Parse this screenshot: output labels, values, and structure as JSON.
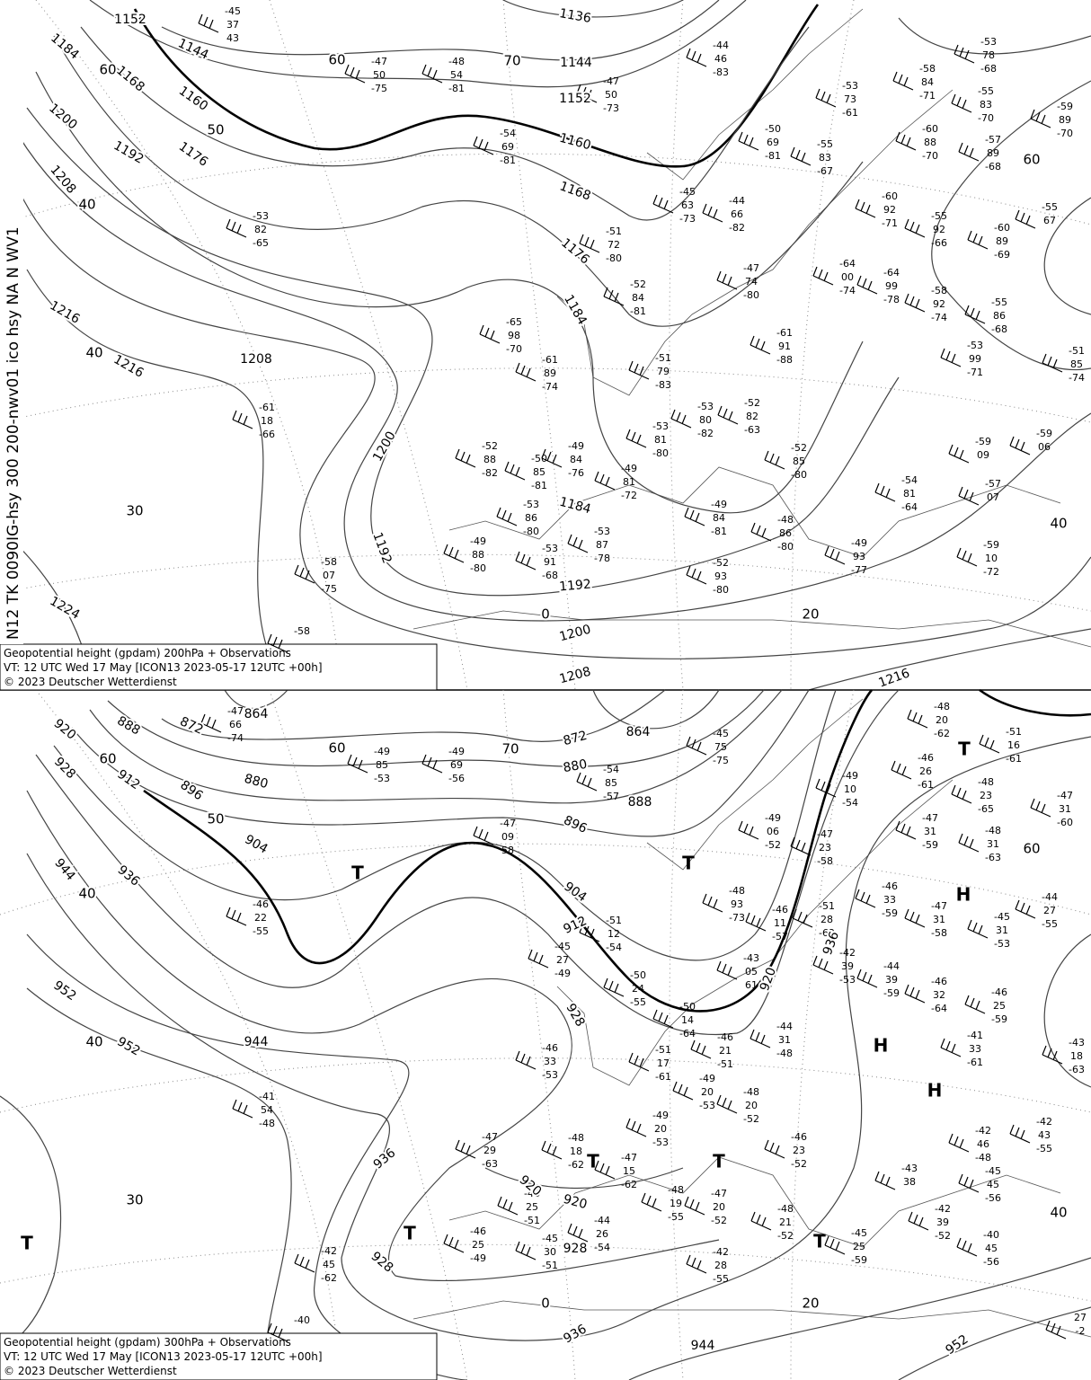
{
  "side_label": "N12 TK 0090IG-hsy 300 200-nwv01 ico hsy NA N WV1",
  "panels": [
    {
      "caption": [
        "Geopotential height (gpdam) 200hPa + Observations",
        "VT: 12 UTC Wed  17 May  [ICON13  2023-05-17 12UTC  +00h]",
        "©  2023 Deutscher Wetterdienst"
      ],
      "contour_labels": [
        "1152",
        "1144",
        "1136",
        "1144",
        "1152",
        "1160",
        "1168",
        "1176",
        "1184",
        "1184",
        "1168",
        "1160",
        "1176",
        "1192",
        "1200",
        "1208",
        "1216",
        "1216",
        "1208",
        "1200",
        "1192",
        "1184",
        "1192",
        "1200",
        "1208",
        "1216",
        "1224"
      ],
      "grid_labels": [
        "60",
        "70",
        "50",
        "60",
        "40",
        "40",
        "30",
        "0",
        "20",
        "40",
        "60"
      ],
      "pressure_centers": [],
      "stations": [
        [
          "-45",
          "37",
          "43"
        ],
        [
          "-47",
          "50",
          "-75"
        ],
        [
          "-48",
          "54",
          "-81"
        ],
        [
          "-47",
          "50",
          "-73"
        ],
        [
          "-44",
          "46",
          "-83"
        ],
        [
          "-53",
          "82",
          "-65"
        ],
        [
          "-54",
          "69",
          "-81"
        ],
        [
          "-50",
          "69",
          "-81"
        ],
        [
          "-60",
          "88",
          "-70"
        ],
        [
          "-57",
          "89",
          "-68"
        ],
        [
          "-51",
          "72",
          "-80"
        ],
        [
          "-52",
          "84",
          "-81"
        ],
        [
          "-65",
          "98",
          "-70"
        ],
        [
          "-61",
          "89",
          "-74"
        ],
        [
          "-61",
          "18",
          "-66"
        ],
        [
          "-52",
          "88",
          "-82"
        ],
        [
          "-50",
          "85",
          "-81"
        ],
        [
          "-49",
          "84",
          "-76"
        ],
        [
          "-49",
          "81",
          "-72"
        ],
        [
          "-53",
          "81",
          "-80"
        ],
        [
          "-53",
          "80",
          "-82"
        ],
        [
          "-52",
          "82",
          "-63"
        ],
        [
          "-52",
          "85",
          "-80"
        ],
        [
          "-53",
          "86",
          "-80"
        ],
        [
          "-49",
          "88",
          "-80"
        ],
        [
          "-53",
          "91",
          "-68"
        ],
        [
          "-53",
          "87",
          "-78"
        ],
        [
          "-49",
          "84",
          "-81"
        ],
        [
          "-52",
          "93",
          "-80"
        ],
        [
          "-48",
          "86",
          "-80"
        ],
        [
          "-49",
          "93",
          "-77"
        ],
        [
          "-58",
          "07",
          "-75"
        ],
        [
          "-59",
          "09"
        ],
        [
          "-59",
          "06"
        ],
        [
          "-57",
          "07"
        ],
        [
          "-59",
          "10",
          "-72"
        ],
        [
          "-54",
          "81",
          "-64"
        ],
        [
          "-53",
          "99",
          "-71"
        ],
        [
          "-60",
          "89",
          "-69"
        ],
        [
          "-55",
          "92",
          "-66"
        ],
        [
          "-64",
          "99",
          "-78"
        ],
        [
          "-64",
          "00",
          "-74"
        ],
        [
          "-60",
          "92",
          "-71"
        ],
        [
          "-58",
          "92",
          "-74"
        ],
        [
          "-55",
          "83",
          "-70"
        ],
        [
          "-59",
          "89",
          "-70"
        ],
        [
          "-55",
          "67"
        ],
        [
          "-55",
          "86",
          "-68"
        ],
        [
          "-51",
          "85",
          "-74"
        ],
        [
          "-61",
          "91",
          "-88"
        ],
        [
          "-47",
          "74",
          "-80"
        ],
        [
          "-44",
          "66",
          "-82"
        ],
        [
          "-45",
          "63",
          "-73"
        ],
        [
          "-55",
          "83",
          "-67"
        ],
        [
          "-53",
          "73",
          "-61"
        ],
        [
          "-58",
          "84",
          "-71"
        ],
        [
          "-53",
          "78",
          "-68"
        ],
        [
          "-51",
          "79",
          "-83"
        ],
        [
          "-58"
        ]
      ]
    },
    {
      "caption": [
        "Geopotential height (gpdam) 300hPa + Observations",
        "VT: 12 UTC Wed  17 May [ICON13  2023-05-17 12UTC  +00h]",
        "©  2023 Deutscher Wetterdienst"
      ],
      "contour_labels": [
        "864",
        "872",
        "888",
        "920",
        "928",
        "912",
        "896",
        "880",
        "904",
        "936",
        "944",
        "952",
        "952",
        "944",
        "864",
        "872",
        "880",
        "888",
        "896",
        "904",
        "912",
        "928",
        "920",
        "920",
        "928",
        "936",
        "928",
        "936",
        "944",
        "952",
        "936",
        "920"
      ],
      "grid_labels": [
        "60",
        "70",
        "50",
        "60",
        "40",
        "40",
        "30",
        "0",
        "20",
        "40",
        "60"
      ],
      "pressure_centers": [
        "T",
        "T",
        "T",
        "T",
        "T",
        "T",
        "T",
        "T",
        "H",
        "H",
        "H"
      ],
      "stations": [
        [
          "-47",
          "66",
          "-74"
        ],
        [
          "-49",
          "85",
          "-53"
        ],
        [
          "-49",
          "69",
          "-56"
        ],
        [
          "-54",
          "85",
          "-57"
        ],
        [
          "-45",
          "75",
          "-75"
        ],
        [
          "-46",
          "22",
          "-55"
        ],
        [
          "-47",
          "09",
          "58"
        ],
        [
          "-49",
          "06",
          "-52"
        ],
        [
          "-47",
          "31",
          "-59"
        ],
        [
          "-48",
          "31",
          "-63"
        ],
        [
          "-51",
          "12",
          "-54"
        ],
        [
          "-50",
          "24",
          "-55"
        ],
        [
          "-45",
          "27",
          "-49"
        ],
        [
          "-46",
          "33",
          "-53"
        ],
        [
          "-41",
          "54",
          "-48"
        ],
        [
          "-47",
          "29",
          "-63"
        ],
        [
          "-46",
          "25",
          "-51"
        ],
        [
          "-48",
          "18",
          "-62"
        ],
        [
          "-47",
          "15",
          "-62"
        ],
        [
          "-49",
          "20",
          "-53"
        ],
        [
          "-51",
          "17",
          "-61"
        ],
        [
          "-49",
          "20",
          "-53"
        ],
        [
          "-46",
          "21",
          "-51"
        ],
        [
          "-48",
          "20",
          "-52"
        ],
        [
          "-44",
          "31",
          "-48"
        ],
        [
          "-46",
          "23",
          "-52"
        ],
        [
          "-46",
          "25",
          "-49"
        ],
        [
          "-45",
          "30",
          "-51"
        ],
        [
          "-44",
          "26",
          "-54"
        ],
        [
          "-48",
          "19",
          "-55"
        ],
        [
          "-47",
          "20",
          "-52"
        ],
        [
          "-42",
          "28",
          "-55"
        ],
        [
          "-48",
          "21",
          "-52"
        ],
        [
          "-45",
          "25",
          "-59"
        ],
        [
          "-42",
          "45",
          "-62"
        ],
        [
          "-40",
          "45",
          "-56"
        ],
        [
          "-42",
          "39",
          "-52"
        ],
        [
          "-43",
          "38"
        ],
        [
          "-45",
          "45",
          "-56"
        ],
        [
          "-42",
          "46",
          "-48"
        ],
        [
          "-42",
          "43",
          "-55"
        ],
        [
          "-41",
          "33",
          "-61"
        ],
        [
          "-46",
          "25",
          "-59"
        ],
        [
          "-46",
          "32",
          "-64"
        ],
        [
          "-44",
          "39",
          "-59"
        ],
        [
          "-42",
          "39",
          "-53"
        ],
        [
          "-46",
          "33",
          "-59"
        ],
        [
          "-47",
          "31",
          "-58"
        ],
        [
          "-45",
          "31",
          "-53"
        ],
        [
          "-46",
          "26",
          "-61"
        ],
        [
          "-48",
          "23",
          "-65"
        ],
        [
          "-47",
          "31",
          "-60"
        ],
        [
          "-44",
          "27",
          "-55"
        ],
        [
          "-43",
          "18",
          "-63"
        ],
        [
          "-47",
          "23",
          "-58"
        ],
        [
          "-49",
          "10",
          "-54"
        ],
        [
          "-51",
          "28",
          "-62"
        ],
        [
          "-48",
          "93",
          "-73"
        ],
        [
          "-46",
          "11",
          "-57"
        ],
        [
          "-43",
          "05",
          "61"
        ],
        [
          "-50",
          "14",
          "-64"
        ],
        [
          "-48",
          "20",
          "-62"
        ],
        [
          "-51",
          "16",
          "-61"
        ],
        [
          "27",
          "-2"
        ],
        [
          "-40"
        ]
      ]
    }
  ]
}
